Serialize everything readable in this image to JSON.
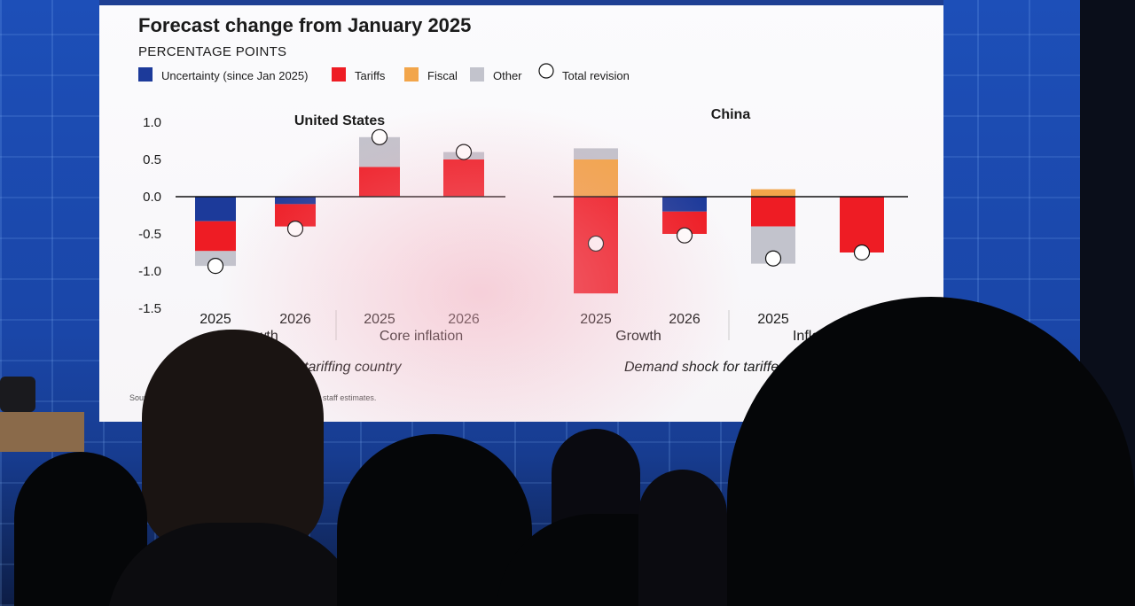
{
  "slide": {
    "title": "Forecast change from January 2025",
    "subtitle": "PERCENTAGE POINTS",
    "legend": [
      {
        "label": "Uncertainty (since Jan 2025)",
        "color": "#1c3a9a",
        "type": "box"
      },
      {
        "label": "Tariffs",
        "color": "#ee1c24",
        "type": "box"
      },
      {
        "label": "Fiscal",
        "color": "#f2a54a",
        "type": "box"
      },
      {
        "label": "Other",
        "color": "#c2c3cc",
        "type": "box"
      },
      {
        "label": "Total revision",
        "color": "#ffffff",
        "type": "circle"
      }
    ],
    "y_ticks": [
      "1.0",
      "0.5",
      "0.0",
      "-0.5",
      "-1.0",
      "-1.5"
    ],
    "source_fragments": [
      "Source",
      "staff estimates."
    ]
  },
  "chart_data": [
    {
      "type": "bar",
      "stacked": true,
      "panel_title": "United States",
      "categories": [
        "2025",
        "2026",
        "2025",
        "2026"
      ],
      "group_labels": [
        "Growth",
        "Core inflation"
      ],
      "shock_label": "k for tariffing country",
      "ylim": [
        -1.5,
        1.0
      ],
      "series": [
        {
          "name": "Uncertainty (since Jan 2025)",
          "values": [
            -0.33,
            -0.1,
            0,
            0
          ]
        },
        {
          "name": "Tariffs",
          "values": [
            -0.4,
            -0.3,
            0.4,
            0.5
          ]
        },
        {
          "name": "Fiscal",
          "values": [
            0,
            0,
            0,
            0
          ]
        },
        {
          "name": "Other",
          "values": [
            -0.2,
            0,
            0.4,
            0.1
          ]
        }
      ],
      "total_revision": [
        -0.93,
        -0.43,
        0.8,
        0.6
      ]
    },
    {
      "type": "bar",
      "stacked": true,
      "panel_title": "China",
      "categories": [
        "2025",
        "2026",
        "2025",
        "2026"
      ],
      "group_labels": [
        "Growth",
        "Inflation"
      ],
      "shock_label": "Demand shock for tariffed country",
      "ylim": [
        -1.5,
        1.0
      ],
      "series": [
        {
          "name": "Uncertainty (since Jan 2025)",
          "values": [
            0,
            -0.2,
            0,
            0
          ]
        },
        {
          "name": "Tariffs",
          "values": [
            -1.3,
            -0.3,
            -0.4,
            -0.75
          ]
        },
        {
          "name": "Fiscal",
          "values": [
            0.5,
            0,
            0.1,
            0
          ]
        },
        {
          "name": "Other",
          "values": [
            0.15,
            0,
            -0.5,
            0
          ]
        }
      ],
      "total_revision": [
        -0.63,
        -0.52,
        -0.83,
        -0.75
      ]
    }
  ]
}
